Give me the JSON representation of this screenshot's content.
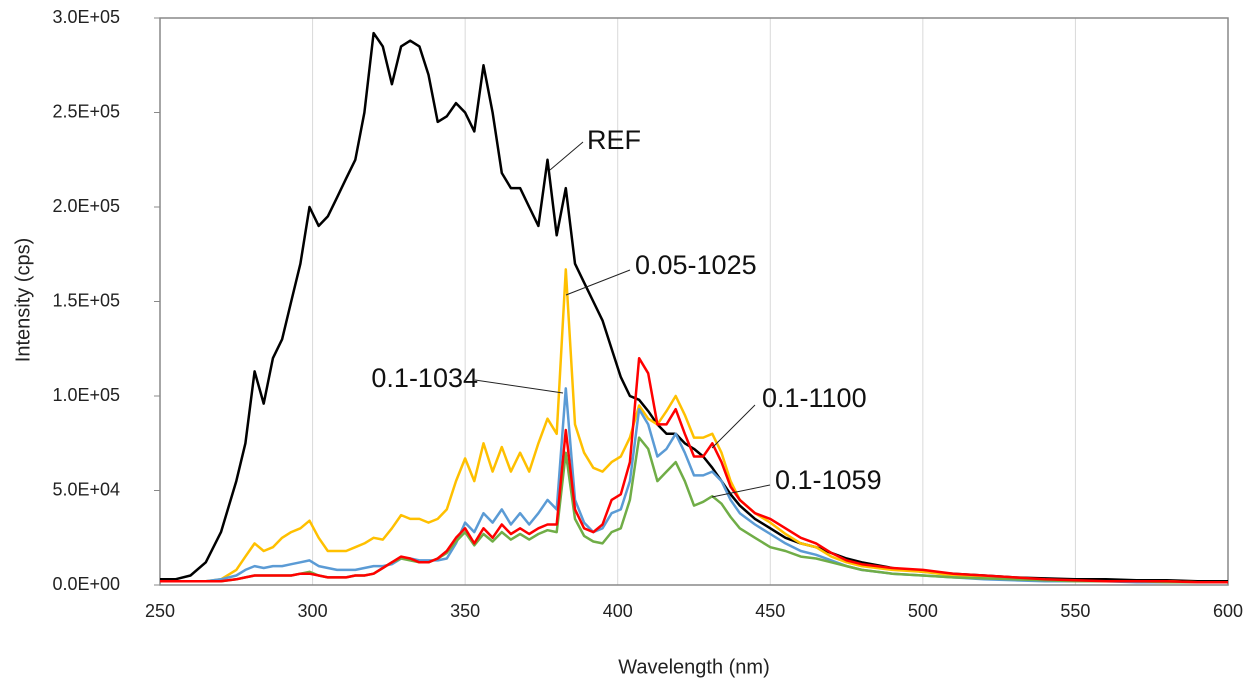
{
  "chart_data": {
    "type": "line",
    "x_label": "Wavelength (nm)",
    "y_label": "Intensity (cps)",
    "xlim": [
      250,
      600
    ],
    "xticks": [
      250,
      300,
      350,
      400,
      450,
      500,
      550,
      600
    ],
    "ylim": [
      0,
      300000
    ],
    "yticks": [
      {
        "value": 0,
        "label": "0.0E+00"
      },
      {
        "value": 50000,
        "label": "5.0E+04"
      },
      {
        "value": 100000,
        "label": "1.0E+05"
      },
      {
        "value": 150000,
        "label": "1.5E+05"
      },
      {
        "value": 200000,
        "label": "2.0E+05"
      },
      {
        "value": 250000,
        "label": "2.5E+05"
      },
      {
        "value": 300000,
        "label": "3.0E+05"
      }
    ],
    "grid": true,
    "x": [
      250,
      255,
      260,
      265,
      270,
      275,
      278,
      281,
      284,
      287,
      290,
      293,
      296,
      299,
      302,
      305,
      308,
      311,
      314,
      317,
      320,
      323,
      326,
      329,
      332,
      335,
      338,
      341,
      344,
      347,
      350,
      353,
      356,
      359,
      362,
      365,
      368,
      371,
      374,
      377,
      380,
      383,
      386,
      389,
      392,
      395,
      398,
      401,
      404,
      407,
      410,
      413,
      416,
      419,
      422,
      425,
      428,
      431,
      434,
      437,
      440,
      445,
      450,
      455,
      460,
      465,
      470,
      475,
      480,
      490,
      500,
      510,
      520,
      530,
      540,
      550,
      560,
      570,
      580,
      590,
      600
    ],
    "series": [
      {
        "name": "REF",
        "color": "#000000",
        "values": [
          3000,
          3000,
          5000,
          12000,
          28000,
          55000,
          75000,
          113000,
          96000,
          120000,
          130000,
          150000,
          170000,
          200000,
          190000,
          195000,
          205000,
          215000,
          225000,
          250000,
          292000,
          285000,
          265000,
          285000,
          288000,
          285000,
          270000,
          245000,
          248000,
          255000,
          250000,
          240000,
          275000,
          250000,
          218000,
          210000,
          210000,
          200000,
          190000,
          225000,
          185000,
          210000,
          170000,
          160000,
          150000,
          140000,
          125000,
          110000,
          100000,
          98000,
          92000,
          85000,
          80000,
          80000,
          75000,
          72000,
          68000,
          62000,
          55000,
          48000,
          42000,
          35000,
          30000,
          25000,
          22000,
          20000,
          17000,
          14000,
          12000,
          9000,
          7000,
          6000,
          5000,
          4000,
          3500,
          3000,
          3000,
          2500,
          2500,
          2000,
          2000
        ]
      },
      {
        "name": "0.05-1025",
        "color": "#ffc000",
        "values": [
          2000,
          2000,
          2000,
          2000,
          3000,
          8000,
          15000,
          22000,
          18000,
          20000,
          25000,
          28000,
          30000,
          34000,
          25000,
          18000,
          18000,
          18000,
          20000,
          22000,
          25000,
          24000,
          30000,
          37000,
          35000,
          35000,
          33000,
          35000,
          40000,
          55000,
          67000,
          55000,
          75000,
          60000,
          73000,
          60000,
          70000,
          60000,
          75000,
          88000,
          80000,
          167000,
          85000,
          70000,
          62000,
          60000,
          65000,
          68000,
          78000,
          95000,
          88000,
          85000,
          92000,
          100000,
          90000,
          78000,
          78000,
          80000,
          70000,
          55000,
          45000,
          38000,
          33000,
          27000,
          22000,
          20000,
          15000,
          12000,
          10000,
          8000,
          7000,
          5000,
          4000,
          3000,
          2500,
          2000,
          2000,
          2000,
          2000,
          1500,
          1500
        ]
      },
      {
        "name": "0.1-1034",
        "color": "#5b9bd5",
        "values": [
          2000,
          2000,
          2000,
          2000,
          3000,
          5000,
          8000,
          10000,
          9000,
          10000,
          10000,
          11000,
          12000,
          13000,
          10000,
          9000,
          8000,
          8000,
          8000,
          9000,
          10000,
          10000,
          11000,
          14000,
          14000,
          13000,
          13000,
          13000,
          14000,
          22000,
          33000,
          28000,
          38000,
          33000,
          40000,
          32000,
          38000,
          32000,
          38000,
          45000,
          40000,
          104000,
          45000,
          33000,
          28000,
          30000,
          38000,
          40000,
          55000,
          93000,
          85000,
          68000,
          72000,
          80000,
          70000,
          58000,
          58000,
          60000,
          55000,
          45000,
          38000,
          32000,
          27000,
          22000,
          18000,
          16000,
          13000,
          10000,
          8000,
          6000,
          5000,
          4000,
          3000,
          2500,
          2000,
          2000,
          2000,
          1500,
          1500,
          1500,
          1500
        ]
      },
      {
        "name": "0.1-1059",
        "color": "#70ad47",
        "values": [
          2000,
          2000,
          2000,
          2000,
          2000,
          3000,
          4000,
          5000,
          5000,
          5000,
          5000,
          5000,
          6000,
          7000,
          5000,
          4000,
          4000,
          4000,
          5000,
          5000,
          6000,
          9000,
          12000,
          14000,
          13000,
          12000,
          12000,
          14000,
          17000,
          23000,
          28000,
          21000,
          27000,
          23000,
          28000,
          24000,
          27000,
          24000,
          27000,
          29000,
          28000,
          70000,
          35000,
          26000,
          23000,
          22000,
          28000,
          30000,
          45000,
          78000,
          72000,
          55000,
          60000,
          65000,
          55000,
          42000,
          44000,
          47000,
          43000,
          36000,
          30000,
          25000,
          20000,
          18000,
          15000,
          14000,
          12000,
          10000,
          8000,
          6000,
          5000,
          4000,
          3500,
          3000,
          2500,
          2000,
          2000,
          2000,
          1500,
          1500,
          1500
        ]
      },
      {
        "name": "0.1-1100",
        "color": "#ff0000",
        "values": [
          2000,
          2000,
          2000,
          2000,
          2000,
          3000,
          4000,
          5000,
          5000,
          5000,
          5000,
          5000,
          6000,
          6000,
          5000,
          4000,
          4000,
          4000,
          5000,
          5000,
          6000,
          9000,
          12000,
          15000,
          14000,
          12000,
          12000,
          14000,
          18000,
          25000,
          30000,
          22000,
          30000,
          25000,
          32000,
          27000,
          30000,
          27000,
          30000,
          32000,
          32000,
          82000,
          40000,
          30000,
          28000,
          32000,
          45000,
          48000,
          65000,
          120000,
          112000,
          85000,
          85000,
          93000,
          80000,
          68000,
          68000,
          75000,
          65000,
          52000,
          45000,
          38000,
          35000,
          30000,
          25000,
          22000,
          17000,
          13000,
          11000,
          9000,
          8000,
          6000,
          5000,
          4000,
          3000,
          2500,
          2000,
          2000,
          2000,
          1500,
          1500
        ]
      }
    ]
  }
}
